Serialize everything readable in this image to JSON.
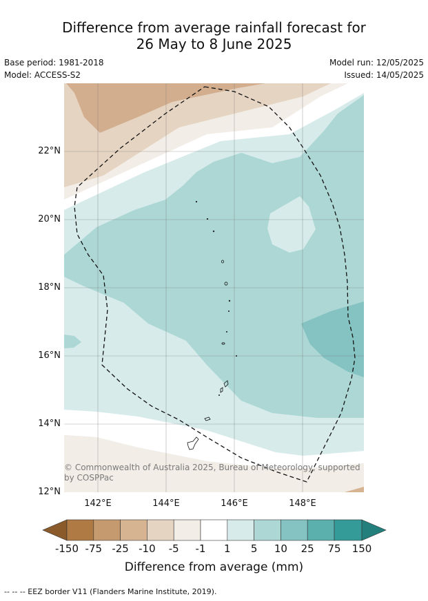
{
  "title_line1": "Difference from average rainfall forecast for",
  "title_line2": "26 May to 8 June 2025",
  "base_period": "Base period: 1981-2018",
  "model": "Model: ACCESS-S2",
  "model_run": "Model run: 12/05/2025",
  "issued": "Issued: 14/05/2025",
  "lat_labels": [
    "22°N",
    "20°N",
    "18°N",
    "16°N",
    "14°N",
    "12°N"
  ],
  "lon_labels": [
    "142°E",
    "144°E",
    "146°E",
    "148°E"
  ],
  "copyright": "© Commonwealth of Australia 2025, Bureau of Meteorology, supported by COSPPac",
  "colorbar": {
    "title": "Difference from average (mm)",
    "ticks": [
      "-150",
      "-75",
      "-25",
      "-10",
      "-5",
      "-1",
      "1",
      "5",
      "10",
      "25",
      "75",
      "150"
    ],
    "colors": [
      "#8a5a2b",
      "#b07a44",
      "#c59a6e",
      "#d6b491",
      "#e6d4c2",
      "#f2ede6",
      "#ffffff",
      "#d6ebea",
      "#acd7d5",
      "#84c3c1",
      "#5bb0ae",
      "#359b98",
      "#237f7c"
    ]
  },
  "footnote": "-- -- -- EEZ border V11 (Flanders Marine Institute, 2019)."
}
